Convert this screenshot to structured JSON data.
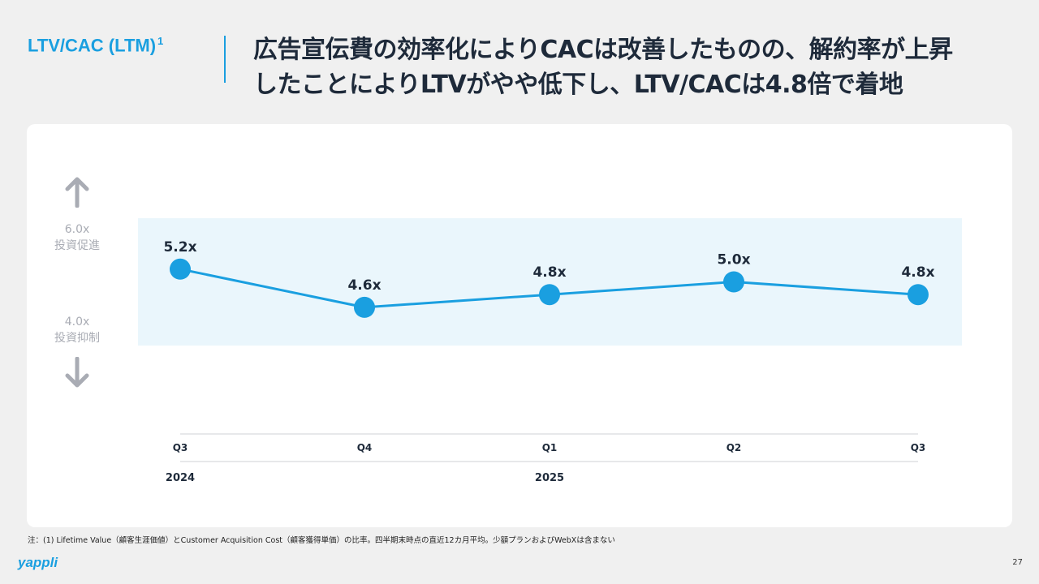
{
  "header": {
    "section_label": "LTV/CAC (LTM)",
    "section_label_sup": "1",
    "headline_line1": "広告宣伝費の効率化によりCACは改善したものの、解約率が上昇",
    "headline_line2": "したことによりLTVがやや低下し、LTV/CACは4.8倍で着地"
  },
  "band": {
    "upper_value": "6.0x",
    "upper_label": "投資促進",
    "lower_value": "4.0x",
    "lower_label": "投資抑制"
  },
  "colors": {
    "accent": "#1a9fe0",
    "band_fill": "#eaf6fc",
    "arrow": "#a9acb4"
  },
  "chart_data": {
    "type": "line",
    "title": "LTV/CAC (LTM)",
    "categories": [
      "Q3",
      "Q4",
      "Q1",
      "Q2",
      "Q3"
    ],
    "years": [
      {
        "label": "2024",
        "index": 0
      },
      {
        "label": "2025",
        "index": 2
      }
    ],
    "values": [
      5.2,
      4.6,
      4.8,
      5.0,
      4.8
    ],
    "data_labels": [
      "5.2x",
      "4.6x",
      "4.8x",
      "5.0x",
      "4.8x"
    ],
    "band_range": [
      4.0,
      6.0
    ],
    "ylim": [
      3.5,
      6.5
    ],
    "xlabel": "",
    "ylabel": ""
  },
  "footer": {
    "footnote": "注：(1) Lifetime Value（顧客生涯価値）とCustomer Acquisition Cost（顧客獲得単価）の比率。四半期末時点の直近12カ月平均。少額プランおよびWebXは含まない",
    "logo": "yappli",
    "page_number": "27"
  }
}
